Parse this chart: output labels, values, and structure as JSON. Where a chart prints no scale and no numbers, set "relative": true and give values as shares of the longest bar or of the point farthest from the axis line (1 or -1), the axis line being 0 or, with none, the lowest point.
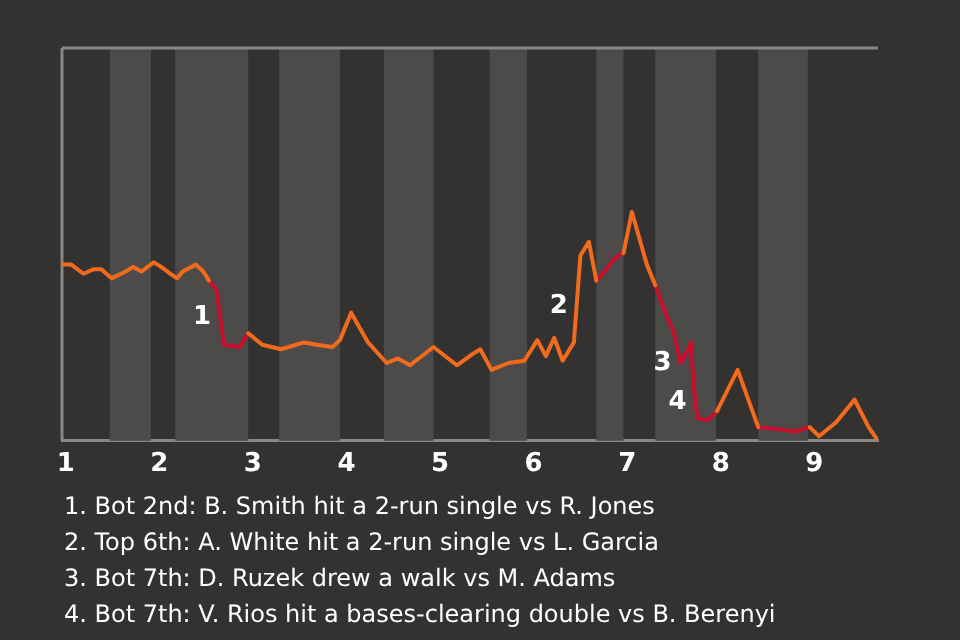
{
  "chart_data": {
    "type": "line",
    "relative": true,
    "tick_labels": "x",
    "legend": false,
    "marker": "none",
    "grid": false,
    "x": [
      0.96,
      1.06,
      1.19,
      1.3,
      1.38,
      1.49,
      1.64,
      1.72,
      1.81,
      1.94,
      2.02,
      2.12,
      2.19,
      2.25,
      2.39,
      2.47,
      2.53,
      2.61,
      2.69,
      2.86,
      2.95,
      3.1,
      3.3,
      3.55,
      3.68,
      3.85,
      3.93,
      4.05,
      4.23,
      4.43,
      4.55,
      4.68,
      4.93,
      5.18,
      5.35,
      5.43,
      5.55,
      5.73,
      5.9,
      6.04,
      6.13,
      6.22,
      6.31,
      6.43,
      6.5,
      6.59,
      6.67,
      6.76,
      6.87,
      6.96,
      7.05,
      7.21,
      7.3,
      7.39,
      7.5,
      7.57,
      7.64,
      7.68,
      7.71,
      7.75,
      7.86,
      7.96,
      8.18,
      8.4,
      8.63,
      8.8,
      8.95,
      9.05,
      9.23,
      9.43,
      9.58,
      9.68
    ],
    "series": [
      {
        "color": "#f26b1d",
        "values": [
          0.77,
          0.77,
          0.73,
          0.75,
          0.75,
          0.71,
          0.74,
          0.76,
          0.74,
          0.78,
          0.76,
          0.73,
          0.71,
          0.74,
          0.77,
          0.74,
          0.7,
          null,
          null,
          null,
          0.47,
          0.42,
          0.4,
          0.43,
          0.42,
          0.41,
          0.44,
          0.56,
          0.43,
          0.34,
          0.36,
          0.33,
          0.41,
          0.33,
          0.38,
          0.4,
          0.31,
          0.34,
          0.35,
          0.44,
          0.37,
          0.45,
          0.35,
          0.43,
          0.81,
          0.87,
          0.7,
          null,
          null,
          0.82,
          1,
          0.77,
          0.68,
          null,
          null,
          null,
          null,
          null,
          null,
          null,
          null,
          0.13,
          0.31,
          0.06,
          null,
          null,
          0.06,
          0.02,
          0.08,
          0.18,
          0.06,
          0
        ]
      },
      {
        "color": "#c8102e",
        "values": [
          null,
          null,
          null,
          null,
          null,
          null,
          null,
          null,
          null,
          null,
          null,
          null,
          null,
          null,
          null,
          null,
          0.7,
          0.66,
          0.42,
          0.41,
          0.47,
          null,
          null,
          null,
          null,
          null,
          null,
          null,
          null,
          null,
          null,
          null,
          null,
          null,
          null,
          null,
          null,
          null,
          null,
          null,
          null,
          null,
          null,
          null,
          null,
          null,
          0.7,
          0.74,
          0.8,
          0.82,
          null,
          null,
          0.68,
          0.58,
          0.47,
          0.34,
          0.39,
          0.43,
          0.24,
          0.1,
          0.09,
          0.13,
          null,
          0.06,
          0.05,
          0.04,
          0.06,
          null,
          null,
          null,
          null,
          null
        ]
      }
    ],
    "xlim": [
      0.96,
      9.68
    ],
    "xticks": [
      1,
      2,
      3,
      4,
      5,
      6,
      7,
      8,
      9
    ],
    "bands": [
      {
        "axis": "x",
        "from": 1.47,
        "to": 1.91,
        "color": "#4d4b49"
      },
      {
        "axis": "x",
        "from": 2.17,
        "to": 2.95,
        "color": "#4d4b49"
      },
      {
        "axis": "x",
        "from": 3.28,
        "to": 3.93,
        "color": "#4d4b49"
      },
      {
        "axis": "x",
        "from": 4.4,
        "to": 4.93,
        "color": "#4d4b49"
      },
      {
        "axis": "x",
        "from": 5.53,
        "to": 5.93,
        "color": "#4d4b49"
      },
      {
        "axis": "x",
        "from": 6.67,
        "to": 6.96,
        "color": "#4d4b49"
      },
      {
        "axis": "x",
        "from": 7.3,
        "to": 7.95,
        "color": "#4d4b49"
      },
      {
        "axis": "x",
        "from": 8.4,
        "to": 8.93,
        "color": "#4d4b49"
      }
    ],
    "annotations": [
      {
        "text": "1",
        "x": 2.65,
        "y": 0.54
      },
      {
        "text": "2",
        "x": 6.46,
        "y": 0.59
      },
      {
        "text": "3",
        "x": 7.57,
        "y": 0.34
      },
      {
        "text": "4",
        "x": 7.73,
        "y": 0.17
      },
      "1. Bot 2nd: B. Smith hit a 2-run single vs R. Jones",
      "2. Top 6th: A. White hit a 2-run single vs L. Garcia",
      "3. Bot 7th: D. Ruzek drew a walk vs M. Adams",
      "4. Bot 7th: V. Rios hit a bases-clearing double vs B. Berenyi"
    ]
  }
}
